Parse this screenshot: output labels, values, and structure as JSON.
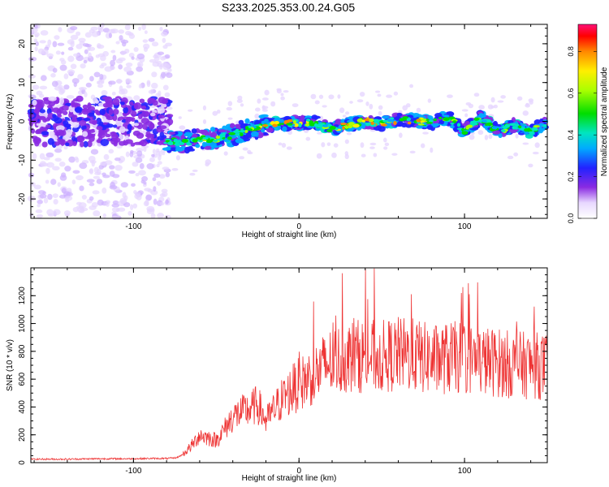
{
  "title": "S233.2025.353.00.24.G05",
  "chart_data": [
    {
      "type": "heatmap",
      "title": "S233.2025.353.00.24.G05",
      "xlabel": "Height of straight line (km)",
      "ylabel": "Frequency (Hz)",
      "xlim": [
        -162,
        150
      ],
      "ylim": [
        -25,
        25
      ],
      "xticks": [
        -100,
        0,
        100
      ],
      "yticks": [
        -20,
        -10,
        0,
        10,
        20
      ],
      "colorbar": {
        "label": "Normalized spectral amplitude",
        "range": [
          0,
          0.93
        ],
        "ticks": [
          0,
          0.2,
          0.4,
          0.6,
          0.8
        ]
      },
      "ridge": {
        "x": [
          -78,
          -70,
          -60,
          -50,
          -40,
          -30,
          -20,
          -10,
          0,
          10,
          20,
          30,
          40,
          50,
          60,
          70,
          80,
          90,
          100,
          110,
          120,
          130,
          140,
          148
        ],
        "freq": [
          -5,
          -5.5,
          -4.5,
          -4.5,
          -3.5,
          -2,
          -1,
          -0.5,
          -0.5,
          -0.2,
          -2,
          -0.8,
          0,
          -0.5,
          0.5,
          0.2,
          -0.5,
          1,
          -2.5,
          1,
          -2.5,
          -1,
          -2.5,
          -1
        ]
      },
      "noise_region": [
        -162,
        -78
      ]
    },
    {
      "type": "line",
      "xlabel": "Height of straight line (km)",
      "ylabel": "SNR (10 * v/v)",
      "xlim": [
        -162,
        150
      ],
      "ylim": [
        0,
        1400
      ],
      "xticks": [
        -100,
        0,
        100
      ],
      "yticks": [
        0,
        200,
        400,
        600,
        800,
        1000,
        1200
      ],
      "color": "#ee3333",
      "series": [
        {
          "name": "SNR",
          "x": [
            -160,
            -140,
            -120,
            -100,
            -90,
            -80,
            -74,
            -70,
            -65,
            -60,
            -55,
            -50,
            -45,
            -40,
            -35,
            -30,
            -25,
            -20,
            -15,
            -10,
            -5,
            0,
            5,
            10,
            15,
            20,
            25,
            30,
            40,
            50,
            60,
            70,
            80,
            90,
            100,
            110,
            120,
            130,
            140,
            150
          ],
          "values": [
            25,
            25,
            28,
            28,
            30,
            30,
            35,
            60,
            120,
            200,
            180,
            160,
            240,
            330,
            360,
            380,
            420,
            300,
            380,
            460,
            520,
            560,
            600,
            640,
            690,
            730,
            740,
            760,
            770,
            760,
            780,
            770,
            740,
            750,
            760,
            730,
            720,
            700,
            700,
            690
          ]
        }
      ]
    }
  ]
}
